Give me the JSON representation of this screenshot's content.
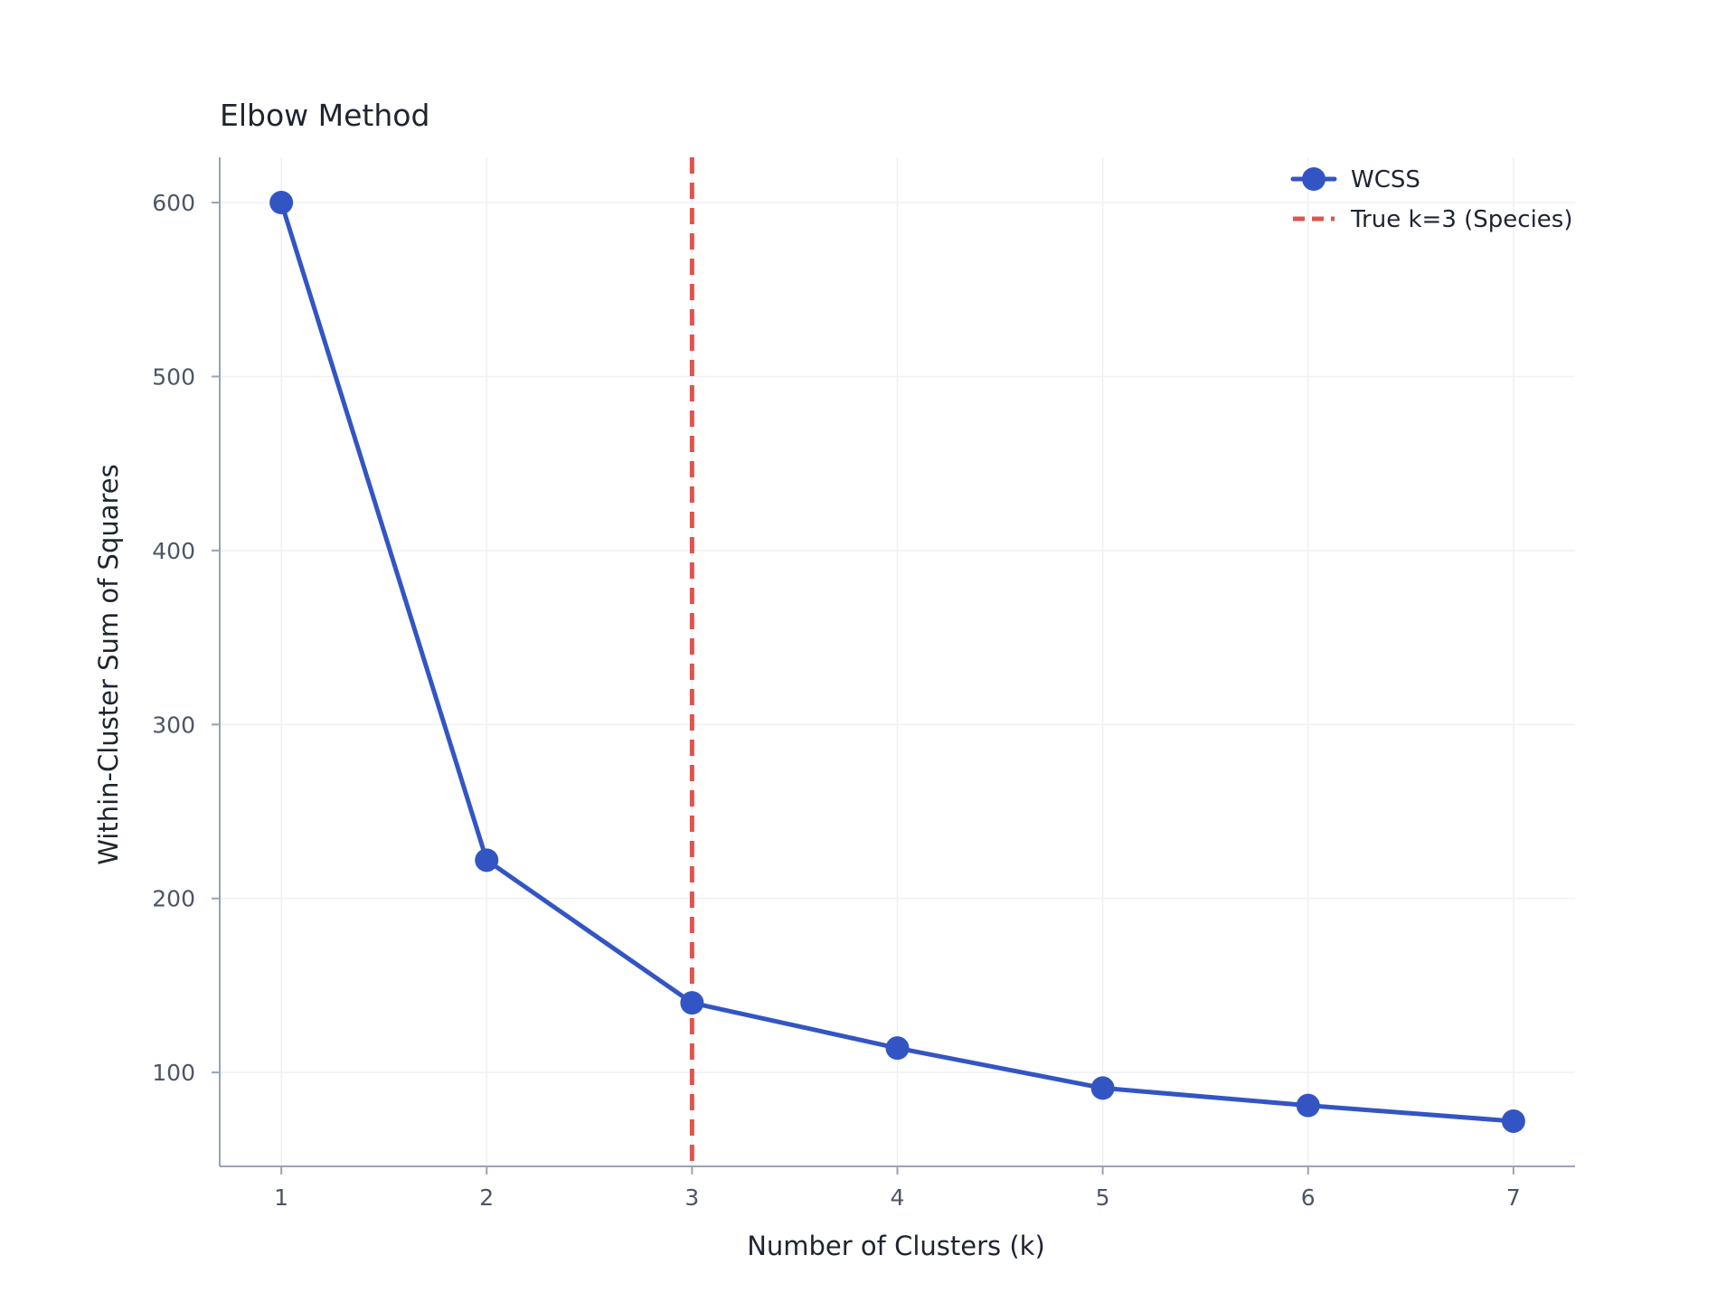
{
  "chart_data": {
    "type": "line",
    "title": "Elbow Method",
    "xlabel": "Number of Clusters (k)",
    "ylabel": "Within-Cluster Sum of Squares",
    "x": [
      1,
      2,
      3,
      4,
      5,
      6,
      7
    ],
    "series": [
      {
        "name": "WCSS",
        "values": [
          600,
          222,
          140,
          114,
          91,
          81,
          72
        ],
        "color": "#3355c4",
        "marker": "circle"
      }
    ],
    "reference_lines": [
      {
        "axis": "x",
        "value": 3,
        "name": "True k=3 (Species)",
        "color": "#dd5550",
        "style": "dashed"
      }
    ],
    "xlim": [
      0.7,
      7.3
    ],
    "ylim": [
      46,
      626
    ],
    "xticks": [
      1,
      2,
      3,
      4,
      5,
      6,
      7
    ],
    "yticks": [
      100,
      200,
      300,
      400,
      500,
      600
    ],
    "grid": true,
    "legend_position": "top-right"
  }
}
